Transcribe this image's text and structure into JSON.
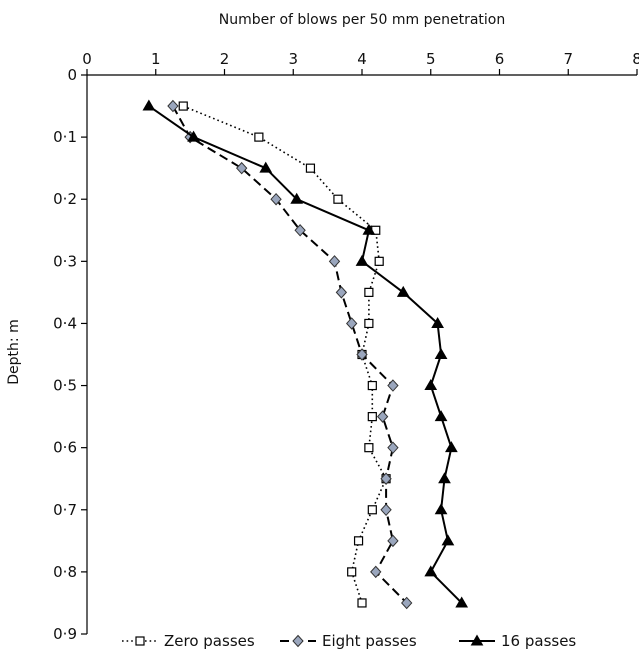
{
  "chart_data": {
    "type": "line",
    "xlabel": "Number of blows per 50 mm penetration",
    "ylabel": "Depth: m",
    "xlim": [
      0,
      8
    ],
    "ylim": [
      0,
      0.9
    ],
    "x_axis_position": "top",
    "y_axis_inverted": true,
    "x_ticks": [
      0,
      1,
      2,
      3,
      4,
      5,
      6,
      7,
      8
    ],
    "x_tick_labels": [
      "0",
      "1",
      "2",
      "3",
      "4",
      "5",
      "6",
      "7",
      "8"
    ],
    "y_ticks": [
      0,
      0.1,
      0.2,
      0.3,
      0.4,
      0.5,
      0.6,
      0.7,
      0.8,
      0.9
    ],
    "y_tick_labels": [
      "0",
      "0·1",
      "0·2",
      "0·3",
      "0·4",
      "0·5",
      "0·6",
      "0·7",
      "0·8",
      "0·9"
    ],
    "grid": false,
    "legend_position": "bottom",
    "series": [
      {
        "name": "Zero passes",
        "line_style": "dotted",
        "marker": "square",
        "color": "#000000",
        "marker_fill": "#ffffff",
        "x": [
          1.4,
          2.5,
          3.25,
          3.65,
          4.2,
          4.25,
          4.1,
          4.1,
          4.0,
          4.15,
          4.15,
          4.1,
          4.35,
          4.15,
          3.95,
          3.85,
          4.0
        ],
        "y": [
          0.05,
          0.1,
          0.15,
          0.2,
          0.25,
          0.3,
          0.35,
          0.4,
          0.45,
          0.5,
          0.55,
          0.6,
          0.65,
          0.7,
          0.75,
          0.8,
          0.85
        ]
      },
      {
        "name": "Eight passes",
        "line_style": "dashed",
        "marker": "diamond",
        "color": "#000000",
        "marker_fill": "#9aa6bd",
        "x": [
          1.25,
          1.5,
          2.25,
          2.75,
          3.1,
          3.6,
          3.7,
          3.85,
          4.0,
          4.45,
          4.3,
          4.45,
          4.35,
          4.35,
          4.45,
          4.2,
          4.65
        ],
        "y": [
          0.05,
          0.1,
          0.15,
          0.2,
          0.25,
          0.3,
          0.35,
          0.4,
          0.45,
          0.5,
          0.55,
          0.6,
          0.65,
          0.7,
          0.75,
          0.8,
          0.85
        ]
      },
      {
        "name": "16 passes",
        "line_style": "solid",
        "marker": "triangle",
        "color": "#000000",
        "marker_fill": "#000000",
        "x": [
          0.9,
          1.55,
          2.6,
          3.05,
          4.1,
          4.0,
          4.6,
          5.1,
          5.15,
          5.0,
          5.15,
          5.3,
          5.2,
          5.15,
          5.25,
          5.0,
          5.45
        ],
        "y": [
          0.05,
          0.1,
          0.15,
          0.2,
          0.25,
          0.3,
          0.35,
          0.4,
          0.45,
          0.5,
          0.55,
          0.6,
          0.65,
          0.7,
          0.75,
          0.8,
          0.85
        ]
      }
    ]
  }
}
